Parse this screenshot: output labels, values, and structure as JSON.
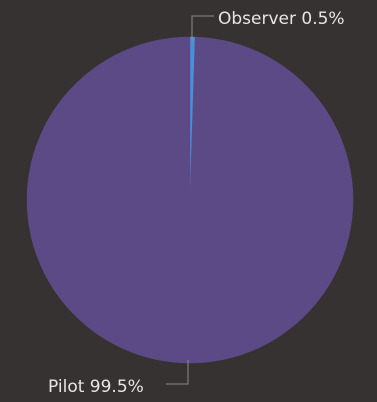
{
  "theme": {
    "background": "#363232",
    "label_color": "#e6e6e6",
    "leader_color": "#8f8a8a"
  },
  "chart_data": {
    "type": "pie",
    "slices": [
      {
        "label": "Observer",
        "value": 0.5,
        "color": "#4a90d9",
        "display": "Observer 0.5%"
      },
      {
        "label": "Pilot",
        "value": 99.5,
        "color": "#5c4a86",
        "display": "Pilot 99.5%"
      }
    ],
    "labels_outside": true,
    "legend": "none"
  }
}
